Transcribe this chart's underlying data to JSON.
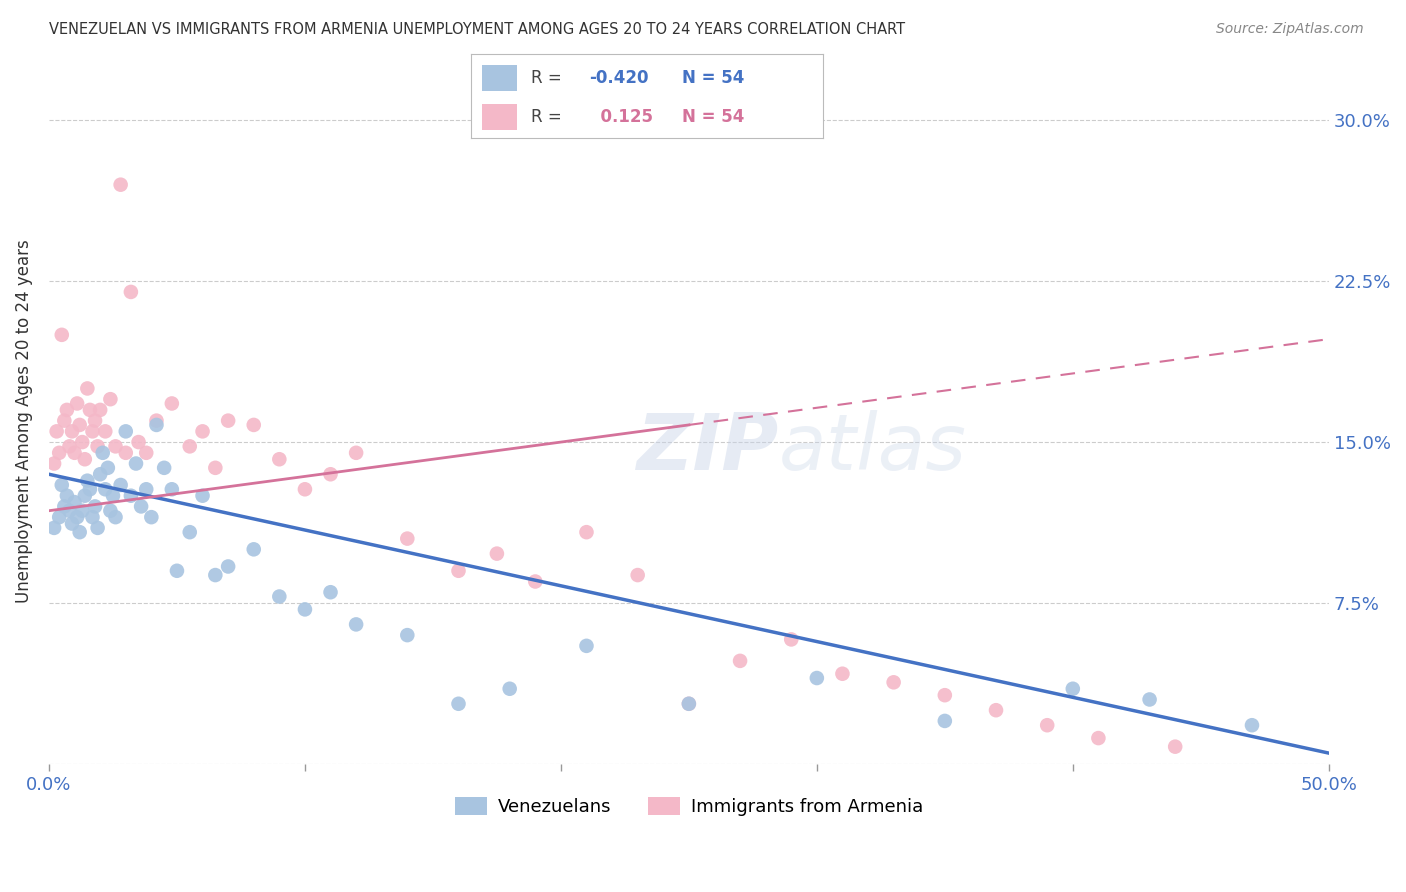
{
  "title": "VENEZUELAN VS IMMIGRANTS FROM ARMENIA UNEMPLOYMENT AMONG AGES 20 TO 24 YEARS CORRELATION CHART",
  "source": "Source: ZipAtlas.com",
  "ylabel": "Unemployment Among Ages 20 to 24 years",
  "xlim": [
    0.0,
    0.5
  ],
  "ylim": [
    0.0,
    0.32
  ],
  "venezuelan_color": "#a8c4e0",
  "armenia_color": "#f4b8c8",
  "venezuelan_line_color": "#4472c4",
  "armenia_line_color": "#d4729a",
  "watermark": "ZIPatlas",
  "background_color": "#ffffff",
  "grid_color": "#cccccc",
  "venezuelan_x": [
    0.002,
    0.004,
    0.005,
    0.006,
    0.007,
    0.008,
    0.009,
    0.01,
    0.011,
    0.012,
    0.013,
    0.014,
    0.015,
    0.016,
    0.017,
    0.018,
    0.019,
    0.02,
    0.021,
    0.022,
    0.023,
    0.024,
    0.025,
    0.026,
    0.028,
    0.03,
    0.032,
    0.034,
    0.036,
    0.038,
    0.04,
    0.042,
    0.045,
    0.048,
    0.05,
    0.055,
    0.06,
    0.065,
    0.07,
    0.08,
    0.09,
    0.1,
    0.11,
    0.12,
    0.14,
    0.16,
    0.18,
    0.21,
    0.25,
    0.3,
    0.35,
    0.4,
    0.43,
    0.47
  ],
  "venezuelan_y": [
    0.11,
    0.115,
    0.13,
    0.12,
    0.125,
    0.118,
    0.112,
    0.122,
    0.115,
    0.108,
    0.118,
    0.125,
    0.132,
    0.128,
    0.115,
    0.12,
    0.11,
    0.135,
    0.145,
    0.128,
    0.138,
    0.118,
    0.125,
    0.115,
    0.13,
    0.155,
    0.125,
    0.14,
    0.12,
    0.128,
    0.115,
    0.158,
    0.138,
    0.128,
    0.09,
    0.108,
    0.125,
    0.088,
    0.092,
    0.1,
    0.078,
    0.072,
    0.08,
    0.065,
    0.06,
    0.028,
    0.035,
    0.055,
    0.028,
    0.04,
    0.02,
    0.035,
    0.03,
    0.018
  ],
  "armenia_x": [
    0.002,
    0.003,
    0.004,
    0.005,
    0.006,
    0.007,
    0.008,
    0.009,
    0.01,
    0.011,
    0.012,
    0.013,
    0.014,
    0.015,
    0.016,
    0.017,
    0.018,
    0.019,
    0.02,
    0.022,
    0.024,
    0.026,
    0.028,
    0.03,
    0.032,
    0.035,
    0.038,
    0.042,
    0.048,
    0.055,
    0.06,
    0.065,
    0.07,
    0.08,
    0.09,
    0.1,
    0.11,
    0.12,
    0.14,
    0.16,
    0.175,
    0.19,
    0.21,
    0.23,
    0.25,
    0.27,
    0.29,
    0.31,
    0.33,
    0.35,
    0.37,
    0.39,
    0.41,
    0.44
  ],
  "armenia_y": [
    0.14,
    0.155,
    0.145,
    0.2,
    0.16,
    0.165,
    0.148,
    0.155,
    0.145,
    0.168,
    0.158,
    0.15,
    0.142,
    0.175,
    0.165,
    0.155,
    0.16,
    0.148,
    0.165,
    0.155,
    0.17,
    0.148,
    0.27,
    0.145,
    0.22,
    0.15,
    0.145,
    0.16,
    0.168,
    0.148,
    0.155,
    0.138,
    0.16,
    0.158,
    0.142,
    0.128,
    0.135,
    0.145,
    0.105,
    0.09,
    0.098,
    0.085,
    0.108,
    0.088,
    0.028,
    0.048,
    0.058,
    0.042,
    0.038,
    0.032,
    0.025,
    0.018,
    0.012,
    0.008
  ],
  "ven_line_x0": 0.0,
  "ven_line_y0": 0.135,
  "ven_line_x1": 0.5,
  "ven_line_y1": 0.005,
  "arm_line_x0": 0.0,
  "arm_line_y0": 0.118,
  "arm_line_solid_x1": 0.25,
  "arm_line_solid_y1": 0.158,
  "arm_line_dash_x1": 0.5,
  "arm_line_dash_y1": 0.198
}
